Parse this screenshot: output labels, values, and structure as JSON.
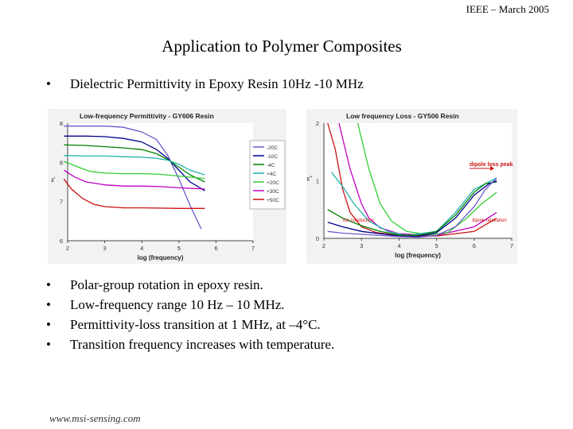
{
  "header": "IEEE – March 2005",
  "title": "Application to Polymer Composites",
  "intro_bullet": "Dielectric Permittivity in Epoxy Resin 10Hz -10 MHz",
  "bullets": [
    "Polar-group rotation in epoxy resin.",
    "Low-frequency range 10 Hz – 10 MHz.",
    "Permittivity-loss transition at 1 MHz, at –4°C.",
    "Transition frequency increases with temperature."
  ],
  "bullet_char": "•",
  "footer": "www.msi-sensing.com",
  "chart_data": [
    {
      "type": "line",
      "title": "Low-frequency Permittivity - GY606 Resin",
      "xlabel": "log (frequency)",
      "ylabel": "ε'",
      "xlim": [
        2,
        7
      ],
      "ylim": [
        6,
        8
      ],
      "x_ticks": [
        "2",
        "3",
        "4",
        "5",
        "6",
        "7"
      ],
      "y_ticks": [
        "6",
        "7",
        "8",
        "8"
      ],
      "legend_position": "right",
      "legend": [
        "-20C",
        "-10C",
        "-4C",
        "+4C",
        "+20C",
        "+30C",
        "+50C"
      ],
      "grid": false,
      "series": [
        {
          "name": "-20C",
          "color": "#6a5acd",
          "x": [
            1.9,
            2.5,
            3,
            3.5,
            4,
            4.4,
            4.7,
            5,
            5.3,
            5.6
          ],
          "values": [
            7.95,
            7.95,
            7.95,
            7.93,
            7.85,
            7.72,
            7.45,
            7.05,
            6.6,
            6.2
          ]
        },
        {
          "name": "-10C",
          "color": "#00008b",
          "x": [
            1.9,
            2.5,
            3,
            3.5,
            4,
            4.4,
            4.7,
            5,
            5.3,
            5.7
          ],
          "values": [
            7.78,
            7.78,
            7.77,
            7.74,
            7.68,
            7.55,
            7.4,
            7.2,
            7.0,
            6.85
          ]
        },
        {
          "name": "-4C",
          "color": "#008000",
          "x": [
            1.9,
            2.5,
            3,
            3.5,
            4,
            4.4,
            4.7,
            5,
            5.3,
            5.7
          ],
          "values": [
            7.63,
            7.62,
            7.6,
            7.58,
            7.55,
            7.48,
            7.38,
            7.25,
            7.12,
            7.0
          ]
        },
        {
          "name": "+4C",
          "color": "#20b2aa",
          "x": [
            1.9,
            2.5,
            3,
            3.5,
            4,
            4.4,
            4.7,
            5,
            5.3,
            5.7
          ],
          "values": [
            7.45,
            7.44,
            7.44,
            7.43,
            7.42,
            7.4,
            7.37,
            7.3,
            7.2,
            7.12
          ]
        },
        {
          "name": "+20C",
          "color": "#32cd32",
          "x": [
            1.9,
            2.3,
            2.6,
            3,
            3.5,
            4,
            4.5,
            5,
            5.7
          ],
          "values": [
            7.35,
            7.25,
            7.18,
            7.15,
            7.14,
            7.14,
            7.13,
            7.1,
            7.06
          ]
        },
        {
          "name": "+30C",
          "color": "#c000c0",
          "x": [
            1.9,
            2.2,
            2.5,
            3,
            3.5,
            4,
            4.5,
            5,
            5.7
          ],
          "values": [
            7.2,
            7.08,
            7.0,
            6.95,
            6.93,
            6.93,
            6.92,
            6.9,
            6.88
          ]
        },
        {
          "name": "+50C",
          "color": "#cc1111",
          "x": [
            1.9,
            2.1,
            2.4,
            2.7,
            3,
            3.5,
            4,
            5,
            5.7
          ],
          "values": [
            7.05,
            6.88,
            6.72,
            6.62,
            6.58,
            6.56,
            6.56,
            6.55,
            6.55
          ]
        }
      ]
    },
    {
      "type": "line",
      "title": "Low frequency Loss - GY506 Resin",
      "xlabel": "log (frequency)",
      "ylabel": "ε''",
      "xlim": [
        2,
        7
      ],
      "ylim": [
        0,
        2
      ],
      "x_ticks": [
        "2",
        "3",
        "4",
        "5",
        "6",
        "7"
      ],
      "y_ticks": [
        "0",
        "1",
        "2"
      ],
      "annotations": [
        "dipole loss peak",
        "ion conduction",
        "dipole relaxation"
      ],
      "grid": false,
      "series": [
        {
          "name": "",
          "color": "#cc1111",
          "x": [
            2.1,
            2.3,
            2.5,
            2.7,
            3,
            3.4,
            4,
            5,
            6,
            6.6
          ],
          "values": [
            2.0,
            1.55,
            0.85,
            0.45,
            0.2,
            0.1,
            0.05,
            0.04,
            0.12,
            0.35
          ]
        },
        {
          "name": "",
          "color": "#c000c0",
          "x": [
            2.4,
            2.7,
            3,
            3.2,
            3.5,
            4,
            5,
            6,
            6.6
          ],
          "values": [
            2.0,
            1.2,
            0.6,
            0.35,
            0.18,
            0.08,
            0.05,
            0.2,
            0.45
          ]
        },
        {
          "name": "",
          "color": "#32cd32",
          "x": [
            2.9,
            3.2,
            3.5,
            3.8,
            4.2,
            4.8,
            5.3,
            5.8,
            6.2,
            6.6
          ],
          "values": [
            2.0,
            1.2,
            0.6,
            0.3,
            0.12,
            0.06,
            0.1,
            0.35,
            0.6,
            0.8
          ]
        },
        {
          "name": "",
          "color": "#20b2aa",
          "x": [
            2.2,
            2.5,
            2.8,
            3.2,
            3.7,
            4.2,
            5,
            5.5,
            6,
            6.6
          ],
          "values": [
            1.15,
            0.9,
            0.6,
            0.3,
            0.12,
            0.05,
            0.12,
            0.45,
            0.85,
            1.05
          ]
        },
        {
          "name": "",
          "color": "#008000",
          "x": [
            2.1,
            2.5,
            3,
            3.5,
            4,
            4.5,
            5,
            5.5,
            6,
            6.3,
            6.6
          ],
          "values": [
            0.5,
            0.35,
            0.22,
            0.12,
            0.06,
            0.05,
            0.12,
            0.4,
            0.8,
            0.95,
            0.98
          ]
        },
        {
          "name": "",
          "color": "#00008b",
          "x": [
            2.1,
            2.5,
            3,
            3.5,
            4,
            4.5,
            5,
            5.5,
            6,
            6.4,
            6.6
          ],
          "values": [
            0.28,
            0.2,
            0.12,
            0.08,
            0.04,
            0.03,
            0.1,
            0.35,
            0.75,
            0.95,
            1.0
          ]
        },
        {
          "name": "",
          "color": "#6a5acd",
          "x": [
            2.1,
            2.5,
            3,
            3.5,
            4,
            4.5,
            5,
            5.5,
            6,
            6.3,
            6.6
          ],
          "values": [
            0.12,
            0.09,
            0.07,
            0.05,
            0.03,
            0.02,
            0.05,
            0.2,
            0.55,
            0.85,
            1.05
          ]
        }
      ]
    }
  ]
}
